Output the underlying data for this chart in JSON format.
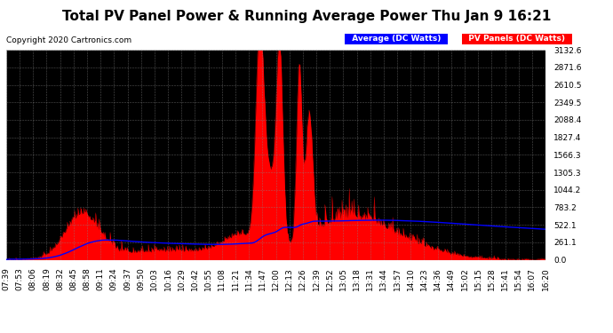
{
  "title": "Total PV Panel Power & Running Average Power Thu Jan 9 16:21",
  "copyright": "Copyright 2020 Cartronics.com",
  "ylabel_right_ticks": [
    0.0,
    261.1,
    522.1,
    783.2,
    1044.2,
    1305.3,
    1566.3,
    1827.4,
    2088.4,
    2349.5,
    2610.5,
    2871.6,
    3132.6
  ],
  "ymax": 3132.6,
  "ymin": 0.0,
  "legend_labels": [
    "Average (DC Watts)",
    "PV Panels (DC Watts)"
  ],
  "background_color": "#ffffff",
  "plot_bg_color": "#000000",
  "grid_color": "#888888",
  "line_color_pv": "#ff0000",
  "line_color_avg": "#0000ff",
  "title_fontsize": 11,
  "tick_fontsize": 6.5,
  "copyright_fontsize": 6.5,
  "x_tick_labels": [
    "07:39",
    "07:53",
    "08:06",
    "08:19",
    "08:32",
    "08:45",
    "08:58",
    "09:11",
    "09:24",
    "09:37",
    "09:50",
    "10:03",
    "10:16",
    "10:29",
    "10:42",
    "10:55",
    "11:08",
    "11:21",
    "11:34",
    "11:47",
    "12:00",
    "12:13",
    "12:26",
    "12:39",
    "12:52",
    "13:05",
    "13:18",
    "13:31",
    "13:44",
    "13:57",
    "14:10",
    "14:23",
    "14:36",
    "14:49",
    "15:02",
    "15:15",
    "15:28",
    "15:41",
    "15:54",
    "16:07",
    "16:20"
  ]
}
